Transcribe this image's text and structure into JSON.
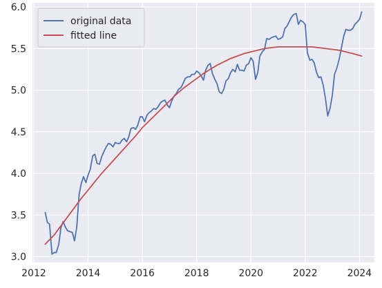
{
  "chart_data": {
    "type": "line",
    "title": "",
    "xlabel": "",
    "ylabel": "",
    "xlim": [
      2011.95,
      2024.55
    ],
    "ylim": [
      2.93,
      6.05
    ],
    "xticks": [
      2012,
      2014,
      2016,
      2018,
      2020,
      2022,
      2024
    ],
    "yticks": [
      3.0,
      3.5,
      4.0,
      4.5,
      5.0,
      5.5,
      6.0
    ],
    "xtick_labels": [
      "2012",
      "2014",
      "2016",
      "2018",
      "2020",
      "2022",
      "2024"
    ],
    "ytick_labels": [
      "3.0",
      "3.5",
      "4.0",
      "4.5",
      "5.0",
      "5.5",
      "6.0"
    ],
    "grid": true,
    "background": "#eaeaf2",
    "legend_position": "upper-left",
    "series": [
      {
        "name": "original data",
        "color": "#4c72b0",
        "x": [
          2012.42,
          2012.5,
          2012.58,
          2012.67,
          2012.75,
          2012.83,
          2012.92,
          2013.0,
          2013.08,
          2013.17,
          2013.25,
          2013.33,
          2013.42,
          2013.5,
          2013.58,
          2013.67,
          2013.75,
          2013.83,
          2013.92,
          2014.0,
          2014.08,
          2014.17,
          2014.25,
          2014.33,
          2014.42,
          2014.5,
          2014.58,
          2014.67,
          2014.75,
          2014.83,
          2014.92,
          2015.0,
          2015.08,
          2015.17,
          2015.25,
          2015.33,
          2015.42,
          2015.5,
          2015.58,
          2015.67,
          2015.75,
          2015.83,
          2015.92,
          2016.0,
          2016.08,
          2016.17,
          2016.25,
          2016.33,
          2016.42,
          2016.5,
          2016.58,
          2016.67,
          2016.75,
          2016.83,
          2016.92,
          2017.0,
          2017.08,
          2017.17,
          2017.25,
          2017.33,
          2017.42,
          2017.5,
          2017.58,
          2017.67,
          2017.75,
          2017.83,
          2017.92,
          2018.0,
          2018.08,
          2018.17,
          2018.25,
          2018.33,
          2018.42,
          2018.5,
          2018.58,
          2018.67,
          2018.75,
          2018.83,
          2018.92,
          2019.0,
          2019.08,
          2019.17,
          2019.25,
          2019.33,
          2019.42,
          2019.5,
          2019.58,
          2019.67,
          2019.75,
          2019.83,
          2019.92,
          2020.0,
          2020.08,
          2020.17,
          2020.25,
          2020.33,
          2020.42,
          2020.5,
          2020.58,
          2020.67,
          2020.75,
          2020.83,
          2020.92,
          2021.0,
          2021.08,
          2021.17,
          2021.25,
          2021.33,
          2021.42,
          2021.5,
          2021.58,
          2021.67,
          2021.75,
          2021.83,
          2021.92,
          2022.0,
          2022.08,
          2022.17,
          2022.25,
          2022.33,
          2022.42,
          2022.5,
          2022.58,
          2022.67,
          2022.75,
          2022.83,
          2022.92,
          2023.0,
          2023.08,
          2023.17,
          2023.25,
          2023.33,
          2023.42,
          2023.5,
          2023.58,
          2023.67,
          2023.75,
          2023.83,
          2023.92,
          2024.0,
          2024.08
        ],
        "y": [
          3.53,
          3.41,
          3.39,
          3.03,
          3.05,
          3.05,
          3.15,
          3.35,
          3.42,
          3.35,
          3.31,
          3.3,
          3.29,
          3.19,
          3.35,
          3.75,
          3.88,
          3.96,
          3.89,
          3.98,
          4.05,
          4.21,
          4.23,
          4.12,
          4.11,
          4.2,
          4.26,
          4.32,
          4.36,
          4.35,
          4.32,
          4.37,
          4.36,
          4.36,
          4.4,
          4.42,
          4.38,
          4.44,
          4.54,
          4.55,
          4.53,
          4.58,
          4.68,
          4.68,
          4.62,
          4.7,
          4.73,
          4.75,
          4.78,
          4.77,
          4.8,
          4.85,
          4.87,
          4.88,
          4.82,
          4.79,
          4.87,
          4.93,
          4.96,
          5.01,
          5.03,
          5.08,
          5.14,
          5.16,
          5.16,
          5.19,
          5.19,
          5.23,
          5.21,
          5.17,
          5.12,
          5.24,
          5.3,
          5.32,
          5.2,
          5.13,
          5.08,
          4.98,
          4.96,
          5.01,
          5.11,
          5.14,
          5.21,
          5.25,
          5.22,
          5.31,
          5.24,
          5.24,
          5.23,
          5.3,
          5.32,
          5.39,
          5.35,
          5.13,
          5.21,
          5.41,
          5.46,
          5.49,
          5.62,
          5.61,
          5.63,
          5.64,
          5.65,
          5.61,
          5.62,
          5.64,
          5.74,
          5.77,
          5.83,
          5.88,
          5.91,
          5.92,
          5.79,
          5.84,
          5.82,
          5.79,
          5.45,
          5.36,
          5.37,
          5.33,
          5.21,
          5.15,
          5.16,
          5.05,
          4.89,
          4.69,
          4.79,
          4.94,
          5.19,
          5.27,
          5.37,
          5.5,
          5.65,
          5.73,
          5.72,
          5.72,
          5.74,
          5.79,
          5.82,
          5.85,
          5.94
        ]
      },
      {
        "name": "fitted line",
        "color": "#c44e52",
        "x": [
          2012.42,
          2012.75,
          2013.0,
          2013.25,
          2013.5,
          2013.75,
          2014.0,
          2014.25,
          2014.5,
          2014.75,
          2015.0,
          2015.25,
          2015.5,
          2015.75,
          2016.0,
          2016.25,
          2016.5,
          2016.75,
          2017.0,
          2017.25,
          2017.5,
          2017.75,
          2018.0,
          2018.25,
          2018.5,
          2018.75,
          2019.0,
          2019.25,
          2019.5,
          2019.75,
          2020.0,
          2020.25,
          2020.5,
          2020.75,
          2021.0,
          2021.25,
          2021.5,
          2021.75,
          2022.0,
          2022.25,
          2022.5,
          2022.75,
          2023.0,
          2023.25,
          2023.5,
          2023.75,
          2024.08
        ],
        "y": [
          3.15,
          3.26,
          3.37,
          3.48,
          3.59,
          3.7,
          3.8,
          3.9,
          4.0,
          4.09,
          4.18,
          4.27,
          4.36,
          4.45,
          4.55,
          4.63,
          4.71,
          4.79,
          4.87,
          4.95,
          5.02,
          5.08,
          5.14,
          5.2,
          5.25,
          5.3,
          5.34,
          5.38,
          5.41,
          5.44,
          5.46,
          5.48,
          5.5,
          5.51,
          5.52,
          5.52,
          5.52,
          5.52,
          5.52,
          5.52,
          5.51,
          5.5,
          5.49,
          5.48,
          5.46,
          5.44,
          5.41
        ]
      }
    ]
  }
}
